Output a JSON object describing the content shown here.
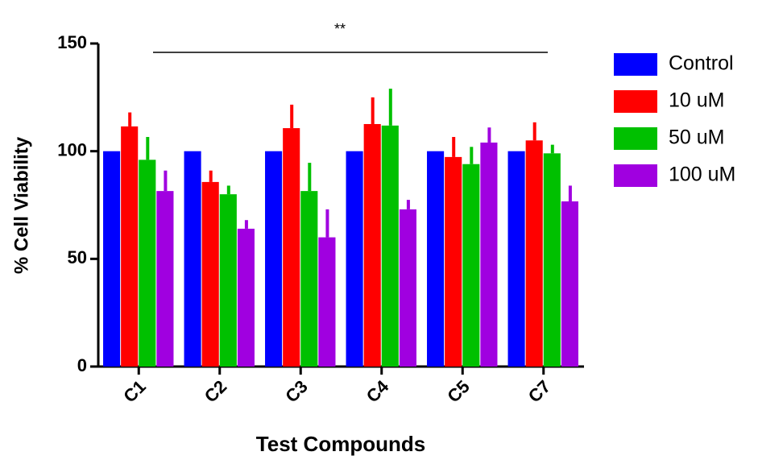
{
  "chart_data": {
    "type": "bar",
    "y_label": "% Cell Viability",
    "x_label": "Test Compounds",
    "annotation": "**",
    "categories": [
      "C1",
      "C2",
      "C3",
      "C4",
      "C5",
      "C7"
    ],
    "series": [
      {
        "name": "Control",
        "color": "#0000ff",
        "values": [
          100,
          100,
          100,
          100,
          100,
          100
        ],
        "errors": [
          0,
          0,
          0,
          0,
          0,
          0
        ]
      },
      {
        "name": "10 uM",
        "color": "#ff0000",
        "values": [
          111.5,
          85.7,
          110.7,
          112.6,
          97.3,
          105
        ],
        "errors": [
          6.5,
          5.3,
          10.9,
          12.4,
          9.3,
          8.4
        ]
      },
      {
        "name": "50 uM",
        "color": "#00c000",
        "values": [
          96,
          80,
          81.5,
          111.9,
          94,
          99
        ],
        "errors": [
          10.6,
          4,
          13.1,
          17.1,
          8,
          4
        ]
      },
      {
        "name": "100 uM",
        "color": "#a000e0",
        "values": [
          81.5,
          64,
          60,
          73,
          104,
          76.7
        ],
        "errors": [
          9.5,
          4,
          13,
          4.4,
          7,
          7.3
        ]
      }
    ],
    "ylim": [
      0,
      150
    ],
    "yticks": [
      0,
      50,
      100,
      150
    ],
    "legend": "right"
  }
}
